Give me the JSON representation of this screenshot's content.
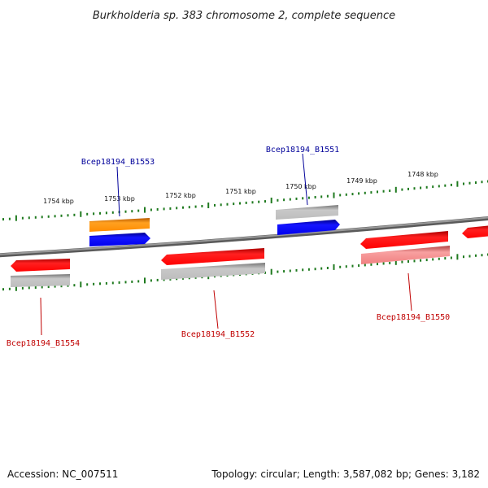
{
  "title": "Burkholderia sp. 383 chromosome 2, complete sequence",
  "colors": {
    "backbone": "#808080",
    "tick": "#1f7a1f",
    "red": "#ff0000",
    "orange": "#ff8c00",
    "blue": "#0000e6",
    "gray": "#b5b5b5",
    "pink": "#f08c8c",
    "label_blue": "#00009a",
    "label_red": "#c00000"
  },
  "scale_labels": [
    "1754 kbp",
    "1753 kbp",
    "1752 kbp",
    "1751 kbp",
    "1750 kbp",
    "1749 kbp",
    "1748 kbp"
  ],
  "genes": [
    {
      "label": "Bcep18194_B1553",
      "color": "label_blue"
    },
    {
      "label": "Bcep18194_B1551",
      "color": "label_blue"
    },
    {
      "label": "Bcep18194_B1554",
      "color": "label_red"
    },
    {
      "label": "Bcep18194_B1552",
      "color": "label_red"
    },
    {
      "label": "Bcep18194_B1550",
      "color": "label_red"
    }
  ],
  "footer": {
    "accession": "Accession: NC_007511",
    "topology": "Topology: circular; Length: 3,587,082 bp; Genes: 3,182"
  }
}
